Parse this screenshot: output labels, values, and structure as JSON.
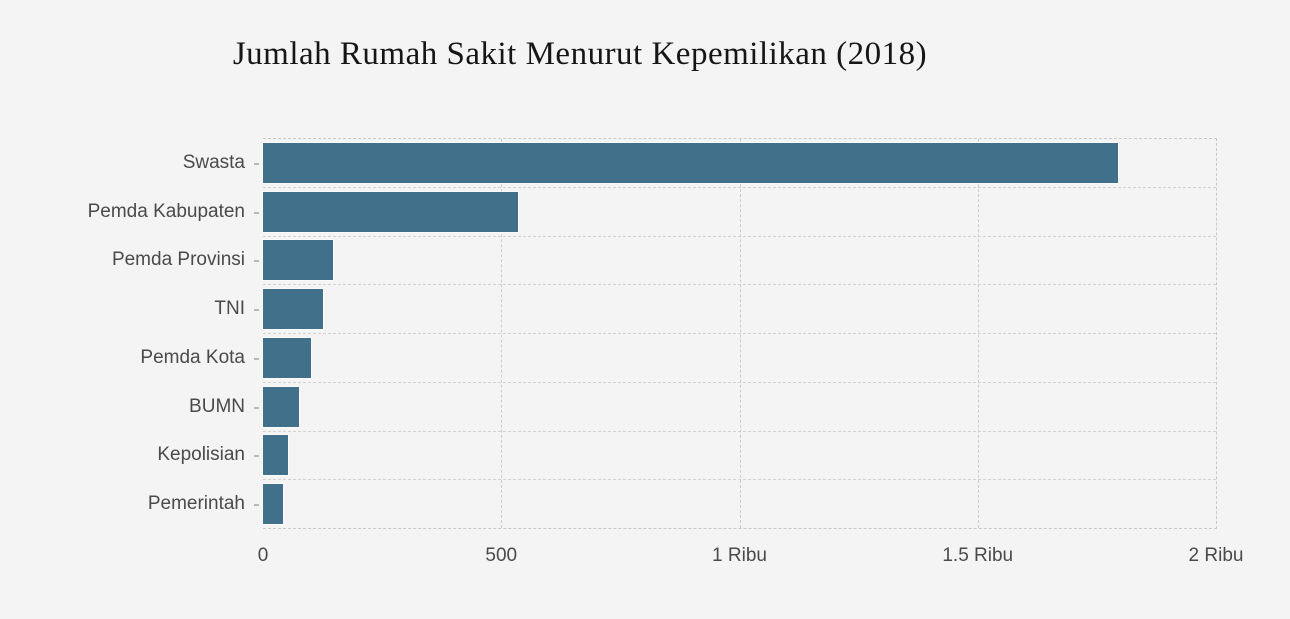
{
  "chart": {
    "background_color": "#f4f4f4",
    "bar_color": "#40708a",
    "gridline_color": "#cccccc",
    "label_color": "#4a4a4a"
  },
  "chart_data": {
    "type": "bar",
    "orientation": "horizontal",
    "title": "Jumlah Rumah Sakit Menurut Kepemilikan (2018)",
    "categories": [
      "Swasta",
      "Pemda Kabupaten",
      "Pemda Provinsi",
      "TNI",
      "Pemda Kota",
      "BUMN",
      "Kepolisian",
      "Pemerintah"
    ],
    "values": [
      1794,
      536,
      147,
      126,
      101,
      76,
      53,
      42
    ],
    "xlabel": "",
    "ylabel": "",
    "xlim": [
      0,
      2000
    ],
    "x_tick_values": [
      0,
      500,
      1000,
      1500,
      2000
    ],
    "x_tick_labels": [
      "0",
      "500",
      "1 Ribu",
      "1.5 Ribu",
      "2 Ribu"
    ],
    "grid": "dashed",
    "legend": "none"
  }
}
